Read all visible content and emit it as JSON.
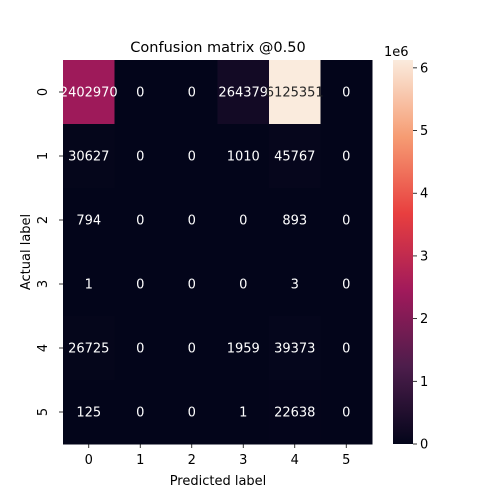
{
  "chart_data": {
    "type": "heatmap",
    "title": "Confusion matrix @0.50",
    "xlabel": "Predicted label",
    "ylabel": "Actual label",
    "x_categories": [
      "0",
      "1",
      "2",
      "3",
      "4",
      "5"
    ],
    "y_categories": [
      "0",
      "1",
      "2",
      "3",
      "4",
      "5"
    ],
    "values": [
      [
        2402970,
        0,
        0,
        264379,
        6125351,
        0
      ],
      [
        30627,
        0,
        0,
        1010,
        45767,
        0
      ],
      [
        794,
        0,
        0,
        0,
        893,
        0
      ],
      [
        1,
        0,
        0,
        0,
        3,
        0
      ],
      [
        26725,
        0,
        0,
        1959,
        39373,
        0
      ],
      [
        125,
        0,
        0,
        1,
        22638,
        0
      ]
    ],
    "colorbar": {
      "scale_label": "1e6",
      "ticks": [
        0,
        1,
        2,
        3,
        4,
        5,
        6
      ],
      "vmin": 0,
      "vmax": 6125351
    },
    "colormap": [
      "#03051a",
      "#4c1d4b",
      "#a11a5b",
      "#e83f3f",
      "#f69c73",
      "#faebdd"
    ],
    "grid": false,
    "legend": "colorbar-right"
  }
}
